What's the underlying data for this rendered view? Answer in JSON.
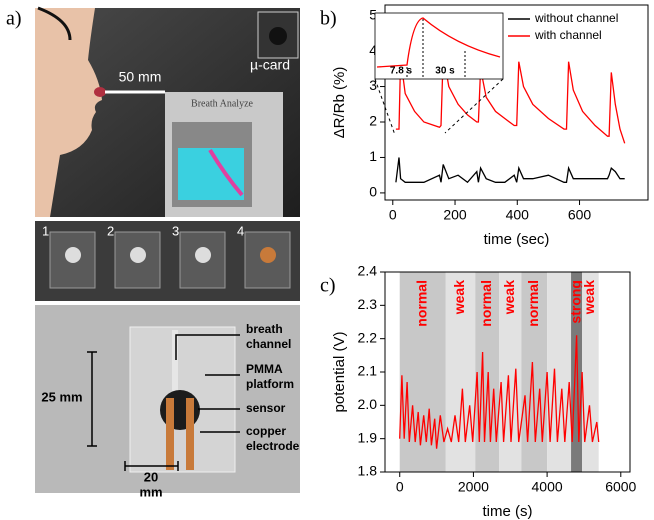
{
  "panel_a": {
    "label": "a)",
    "scale": "50 mm",
    "card": "µ-card",
    "device": "Breath Analyze",
    "steps": [
      "1",
      "2",
      "3",
      "4"
    ],
    "parts": [
      [
        "breath",
        "channel"
      ],
      [
        "PMMA",
        "platform"
      ],
      [
        "sensor"
      ],
      [
        "copper",
        "electrode"
      ]
    ],
    "height": "25 mm",
    "width": [
      "20",
      "mm"
    ]
  },
  "chart_data": [
    {
      "type": "line",
      "panel": "b)",
      "x_label": "time (sec)",
      "y_label": "ΔR/Rb (%)",
      "annotations": [
        "7.8 s",
        "30 s"
      ],
      "xlim": [
        -25,
        820
      ],
      "ylim": [
        -0.2,
        5.3
      ],
      "xticks": [
        0,
        200,
        400,
        600
      ],
      "yticks": [
        0,
        1,
        2,
        3,
        4,
        5
      ],
      "legend": "upper right",
      "x": [
        10,
        20,
        25,
        40,
        70,
        100,
        150,
        155,
        162,
        180,
        210,
        240,
        270,
        275,
        282,
        300,
        330,
        360,
        390,
        398,
        405,
        420,
        450,
        500,
        550,
        558,
        565,
        580,
        610,
        650,
        690,
        695,
        702,
        715,
        730,
        745
      ],
      "series": [
        {
          "name": "without channel",
          "color": "#000000",
          "values": [
            0.3,
            1.0,
            0.4,
            0.3,
            0.3,
            0.3,
            0.5,
            0.3,
            0.8,
            0.4,
            0.5,
            0.3,
            0.6,
            0.3,
            0.7,
            0.4,
            0.3,
            0.3,
            0.5,
            0.3,
            0.7,
            0.4,
            0.4,
            0.5,
            0.3,
            0.3,
            0.7,
            0.4,
            0.4,
            0.4,
            0.4,
            0.5,
            0.7,
            0.6,
            0.4,
            0.4
          ]
        },
        {
          "name": "with channel",
          "color": "#ff0000",
          "values": [
            1.8,
            1.8,
            3.8,
            2.8,
            2.3,
            2.0,
            1.85,
            1.9,
            3.9,
            3.0,
            2.5,
            2.2,
            2.0,
            2.0,
            3.5,
            2.7,
            2.3,
            2.1,
            1.9,
            1.9,
            3.7,
            3.0,
            2.5,
            2.1,
            1.8,
            1.8,
            3.7,
            2.9,
            2.3,
            1.9,
            1.6,
            1.6,
            3.4,
            2.5,
            1.8,
            1.4
          ]
        }
      ]
    },
    {
      "type": "line",
      "panel": "c)",
      "x_label": "time (s)",
      "y_label": "potential (V)",
      "xlim": [
        -400,
        6250
      ],
      "ylim": [
        1.8,
        2.4
      ],
      "xticks": [
        0,
        2000,
        4000,
        6000
      ],
      "yticks": [
        1.8,
        1.9,
        {
          "value": 2,
          "label": "2.0"
        },
        2.1,
        2.2,
        2.3,
        2.4
      ],
      "bands": [
        {
          "x0": 0,
          "x1": 1250,
          "label": "normal",
          "color": "#c8c8c8"
        },
        {
          "x0": 1250,
          "x1": 2050,
          "label": "weak",
          "color": "#e2e2e2"
        },
        {
          "x0": 2050,
          "x1": 2700,
          "label": "normal",
          "color": "#c8c8c8"
        },
        {
          "x0": 2700,
          "x1": 3300,
          "label": "weak",
          "color": "#e2e2e2"
        },
        {
          "x0": 3300,
          "x1": 4000,
          "label": "normal",
          "color": "#c8c8c8"
        },
        {
          "x0": 4000,
          "x1": 4650,
          "color": "#e2e2e2"
        },
        {
          "x0": 4650,
          "x1": 4950,
          "label": "strong",
          "color": "#7a7a7a"
        },
        {
          "x0": 4950,
          "x1": 5400,
          "label": "weak",
          "color": "#e2e2e2"
        }
      ],
      "x": [
        0,
        60,
        120,
        200,
        260,
        350,
        420,
        500,
        560,
        650,
        720,
        800,
        860,
        950,
        1000,
        1100,
        1200,
        1300,
        1400,
        1500,
        1600,
        1700,
        1780,
        1900,
        1980,
        2100,
        2160,
        2250,
        2300,
        2400,
        2460,
        2550,
        2620,
        2750,
        2820,
        2950,
        3020,
        3150,
        3230,
        3400,
        3470,
        3600,
        3680,
        3800,
        3870,
        4000,
        4080,
        4200,
        4280,
        4400,
        4480,
        4600,
        4680,
        4800,
        4860,
        4950,
        5020,
        5150,
        5230,
        5350,
        5400
      ],
      "series": [
        {
          "color": "#ff0000",
          "values": [
            1.9,
            2.09,
            1.9,
            2.07,
            1.89,
            2.0,
            1.89,
            1.98,
            1.88,
            1.97,
            1.89,
            1.99,
            1.88,
            1.96,
            1.87,
            1.97,
            1.89,
            1.93,
            1.89,
            1.97,
            1.89,
            2.05,
            1.89,
            2.0,
            1.89,
            2.1,
            1.89,
            2.16,
            1.89,
            2.1,
            1.89,
            2.05,
            1.89,
            2.07,
            1.89,
            2.09,
            1.89,
            2.11,
            1.89,
            2.03,
            1.89,
            2.13,
            1.89,
            2.05,
            1.89,
            2.1,
            1.89,
            2.11,
            1.89,
            2.05,
            1.89,
            2.07,
            1.89,
            2.21,
            1.89,
            2.1,
            1.89,
            2.0,
            1.89,
            1.95,
            1.89
          ]
        }
      ]
    }
  ]
}
